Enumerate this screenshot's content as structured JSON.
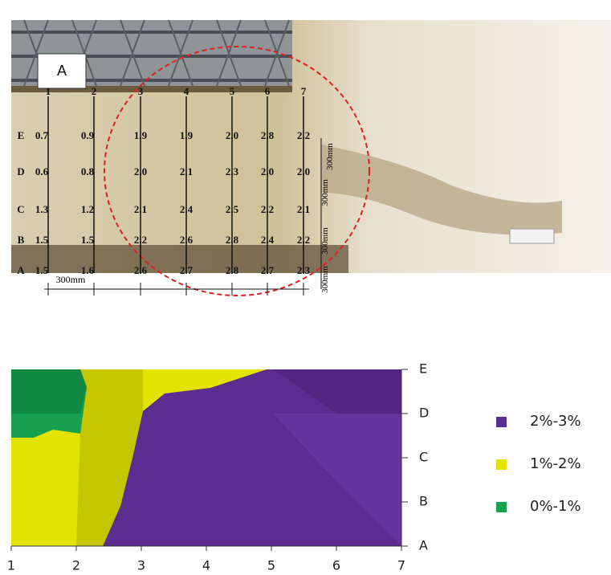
{
  "photo": {
    "panel_label": "A",
    "columns": [
      "1",
      "2",
      "3",
      "4",
      "5",
      "6",
      "7"
    ],
    "rows": [
      "E",
      "D",
      "C",
      "B",
      "A"
    ],
    "values": [
      [
        "0.7",
        "0.9",
        "1.9",
        "1.9",
        "2.0",
        "2.8",
        "2.2"
      ],
      [
        "0.6",
        "0.8",
        "2.0",
        "2.1",
        "2.3",
        "2.0",
        "2.0"
      ],
      [
        "1.3",
        "1.2",
        "2.1",
        "2.4",
        "2.5",
        "2.2",
        "2.1"
      ],
      [
        "1.5",
        "1.5",
        "2.2",
        "2.6",
        "2.8",
        "2.4",
        "2.2"
      ],
      [
        "1.5",
        "1.6",
        "2.6",
        "2.7",
        "2.8",
        "2.7",
        "2.3"
      ]
    ],
    "horizontal_spacing": "300mm",
    "vertical_spacings": [
      "300mm",
      "300mm",
      "300mm",
      "300mm"
    ]
  },
  "contour": {
    "x_ticks": [
      "1",
      "2",
      "3",
      "4",
      "5",
      "6",
      "7"
    ],
    "y_ticks": [
      "A",
      "B",
      "C",
      "D",
      "E"
    ],
    "legend": [
      {
        "label": "2%-3%",
        "color": "#5b2d91"
      },
      {
        "label": "1%-2%",
        "color": "#e3e300"
      },
      {
        "label": "0%-1%",
        "color": "#17a04f"
      }
    ]
  }
}
